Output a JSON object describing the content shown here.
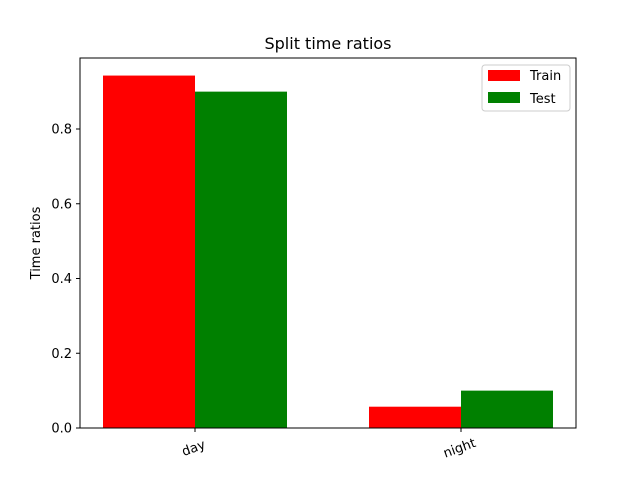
{
  "chart_data": {
    "type": "bar",
    "title": "Split time ratios",
    "xlabel": "",
    "ylabel": "Time ratios",
    "categories": [
      "day",
      "night"
    ],
    "series": [
      {
        "name": "Train",
        "values": [
          0.943,
          0.057
        ],
        "color": "#ff0000"
      },
      {
        "name": "Test",
        "values": [
          0.9,
          0.1
        ],
        "color": "#008000"
      }
    ],
    "ylim": [
      0,
      0.99
    ],
    "yticks": [
      "0.0",
      "0.2",
      "0.4",
      "0.6",
      "0.8"
    ],
    "ytick_values": [
      0.0,
      0.2,
      0.4,
      0.6,
      0.8
    ],
    "grid": false,
    "legend_position": "top-right",
    "xtick_rotation": "rotated"
  }
}
